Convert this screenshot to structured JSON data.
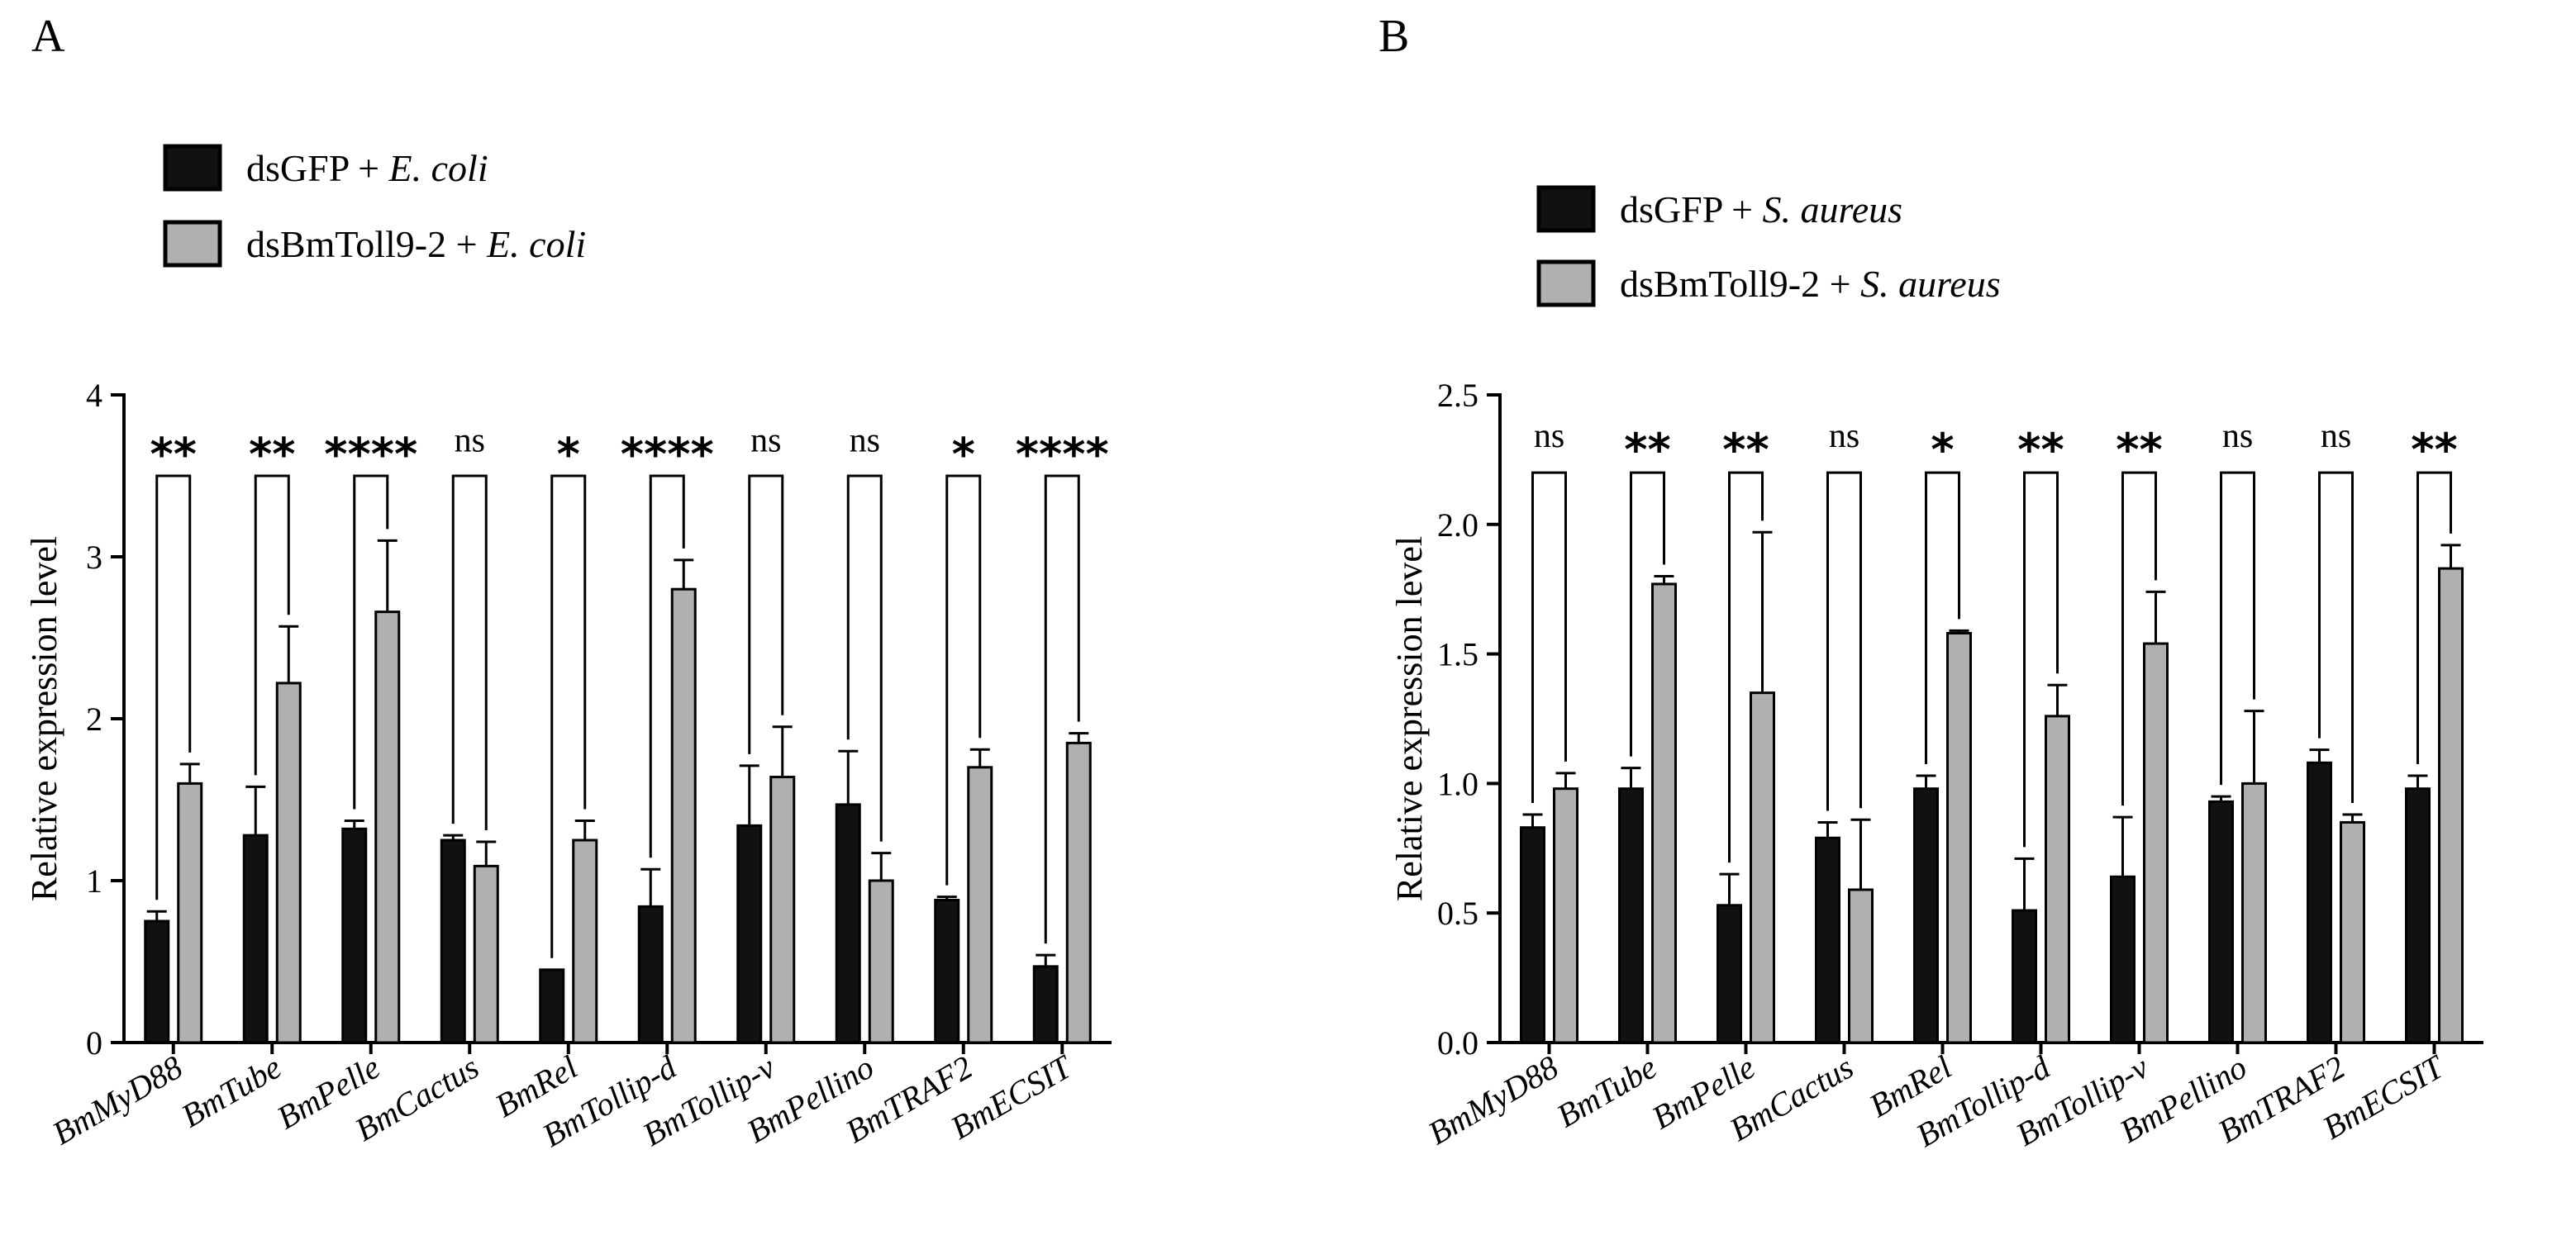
{
  "chart_data": [
    {
      "panel": "A",
      "type": "bar",
      "ylabel": "Relative expression level",
      "ylim": [
        0,
        4
      ],
      "yticks": [
        0,
        1,
        2,
        3,
        4
      ],
      "ytick_labels": [
        "0",
        "1",
        "2",
        "3",
        "4"
      ],
      "categories": [
        "BmMyD88",
        "BmTube",
        "BmPelle",
        "BmCactus",
        "BmRel",
        "BmTollip-d",
        "BmTollip-v",
        "BmPellino",
        "BmTRAF2",
        "BmECSIT"
      ],
      "legend": [
        {
          "prefix": "dsGFP + ",
          "italic": "E. coli",
          "color": "#111111"
        },
        {
          "prefix": "dsBmToll9-2 + ",
          "italic": "E. coli",
          "color": "#b0b0b0"
        }
      ],
      "series": [
        {
          "name": "dsGFP + E. coli",
          "color": "#111111",
          "values": [
            0.75,
            1.28,
            1.32,
            1.25,
            0.45,
            0.84,
            1.34,
            1.47,
            0.88,
            0.47
          ],
          "errors": [
            0.06,
            0.3,
            0.05,
            0.03,
            0.0,
            0.23,
            0.37,
            0.33,
            0.02,
            0.07
          ]
        },
        {
          "name": "dsBmToll9-2 + E. coli",
          "color": "#b0b0b0",
          "values": [
            1.6,
            2.22,
            2.66,
            1.09,
            1.25,
            2.8,
            1.64,
            1.0,
            1.7,
            1.85
          ],
          "errors": [
            0.12,
            0.35,
            0.44,
            0.15,
            0.12,
            0.18,
            0.31,
            0.17,
            0.11,
            0.06
          ]
        }
      ],
      "significance": [
        "**",
        "**",
        "****",
        "ns",
        "*",
        "****",
        "ns",
        "ns",
        "*",
        "****"
      ],
      "bracket_y": 3.5,
      "sig_y": 3.62
    },
    {
      "panel": "B",
      "type": "bar",
      "ylabel": "Relative expression level",
      "ylim": [
        0,
        2.5
      ],
      "yticks": [
        0,
        0.5,
        1.0,
        1.5,
        2.0,
        2.5
      ],
      "ytick_labels": [
        "0.0",
        "0.5",
        "1.0",
        "1.5",
        "2.0",
        "2.5"
      ],
      "categories": [
        "BmMyD88",
        "BmTube",
        "BmPelle",
        "BmCactus",
        "BmRel",
        "BmTollip-d",
        "BmTollip-v",
        "BmPellino",
        "BmTRAF2",
        "BmECSIT"
      ],
      "legend": [
        {
          "prefix": "dsGFP + ",
          "italic": "S. aureus",
          "color": "#111111"
        },
        {
          "prefix": "dsBmToll9-2 + ",
          "italic": "S. aureus",
          "color": "#b0b0b0"
        }
      ],
      "series": [
        {
          "name": "dsGFP + S. aureus",
          "color": "#111111",
          "values": [
            0.83,
            0.98,
            0.53,
            0.79,
            0.98,
            0.51,
            0.64,
            0.93,
            1.08,
            0.98
          ],
          "errors": [
            0.05,
            0.08,
            0.12,
            0.06,
            0.05,
            0.2,
            0.23,
            0.02,
            0.05,
            0.05
          ]
        },
        {
          "name": "dsBmToll9-2 + S. aureus",
          "color": "#b0b0b0",
          "values": [
            0.98,
            1.77,
            1.35,
            0.59,
            1.58,
            1.26,
            1.54,
            1.0,
            0.85,
            1.83
          ],
          "errors": [
            0.06,
            0.03,
            0.62,
            0.27,
            0.01,
            0.12,
            0.2,
            0.28,
            0.03,
            0.09
          ]
        }
      ],
      "significance": [
        "ns",
        "**",
        "**",
        "ns",
        "*",
        "**",
        "**",
        "ns",
        "ns",
        "**"
      ],
      "bracket_y": 2.2,
      "sig_y": 2.28
    }
  ]
}
